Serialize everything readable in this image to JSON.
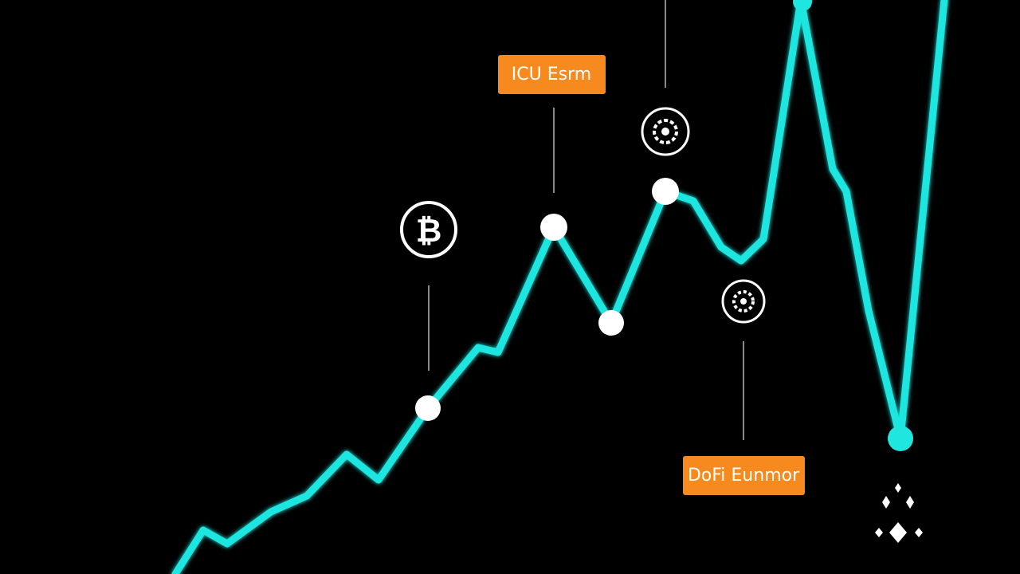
{
  "labels": {
    "ico": "ICU Esrm",
    "defi": "DoFi Eunmor"
  },
  "icons": {
    "bitcoin": "₿"
  }
}
